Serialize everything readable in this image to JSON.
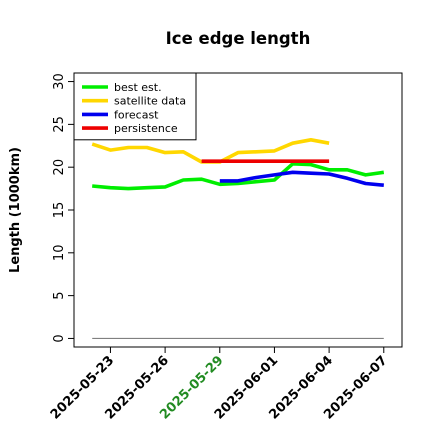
{
  "chart_data": {
    "type": "line",
    "title": "Ice edge length",
    "ylabel": "Length (1000km)",
    "xlabel": "",
    "ylim": [
      -1,
      31
    ],
    "yticks": [
      0,
      5,
      10,
      15,
      20,
      25,
      30
    ],
    "xlim": [
      "2025-05-21",
      "2025-06-08"
    ],
    "xticks": [
      "2025-05-23",
      "2025-05-26",
      "2025-05-29",
      "2025-06-01",
      "2025-06-04",
      "2025-06-07"
    ],
    "highlight_tick": "2025-05-29",
    "highlight_color": "#228b22",
    "grid": false,
    "legend_position": "top-left",
    "series": [
      {
        "name": "best est.",
        "color": "#00ee00",
        "x": [
          "2025-05-22",
          "2025-05-23",
          "2025-05-24",
          "2025-05-25",
          "2025-05-26",
          "2025-05-27",
          "2025-05-28",
          "2025-05-29",
          "2025-05-30",
          "2025-05-31",
          "2025-06-01",
          "2025-06-02",
          "2025-06-03",
          "2025-06-04",
          "2025-06-05",
          "2025-06-06",
          "2025-06-07"
        ],
        "values": [
          17.8,
          17.6,
          17.5,
          17.6,
          17.7,
          18.5,
          18.6,
          18.0,
          18.1,
          18.3,
          18.5,
          20.4,
          20.3,
          19.7,
          19.7,
          19.1,
          19.4
        ]
      },
      {
        "name": "satellite data",
        "color": "#ffd700",
        "x": [
          "2025-05-22",
          "2025-05-23",
          "2025-05-24",
          "2025-05-25",
          "2025-05-26",
          "2025-05-27",
          "2025-05-28",
          "2025-05-29",
          "2025-05-30",
          "2025-05-31",
          "2025-06-01",
          "2025-06-02",
          "2025-06-03",
          "2025-06-04"
        ],
        "values": [
          22.7,
          22.0,
          22.3,
          22.3,
          21.7,
          21.8,
          20.6,
          20.6,
          21.7,
          21.8,
          21.9,
          22.8,
          23.2,
          22.8
        ]
      },
      {
        "name": "forecast",
        "color": "#0000ee",
        "x": [
          "2025-05-29",
          "2025-05-30",
          "2025-05-31",
          "2025-06-01",
          "2025-06-02",
          "2025-06-03",
          "2025-06-04",
          "2025-06-05",
          "2025-06-06",
          "2025-06-07"
        ],
        "values": [
          18.4,
          18.4,
          18.8,
          19.1,
          19.4,
          19.3,
          19.2,
          18.7,
          18.1,
          17.9
        ]
      },
      {
        "name": "persistence",
        "color": "#ee0000",
        "x": [
          "2025-05-28",
          "2025-05-29",
          "2025-05-30",
          "2025-05-31",
          "2025-06-01",
          "2025-06-02",
          "2025-06-03",
          "2025-06-04"
        ],
        "values": [
          20.7,
          20.7,
          20.7,
          20.7,
          20.7,
          20.7,
          20.7,
          20.7
        ]
      }
    ],
    "reference_line": {
      "color": "#808080",
      "value": 0,
      "x": [
        "2025-05-22",
        "2025-06-07"
      ]
    }
  }
}
